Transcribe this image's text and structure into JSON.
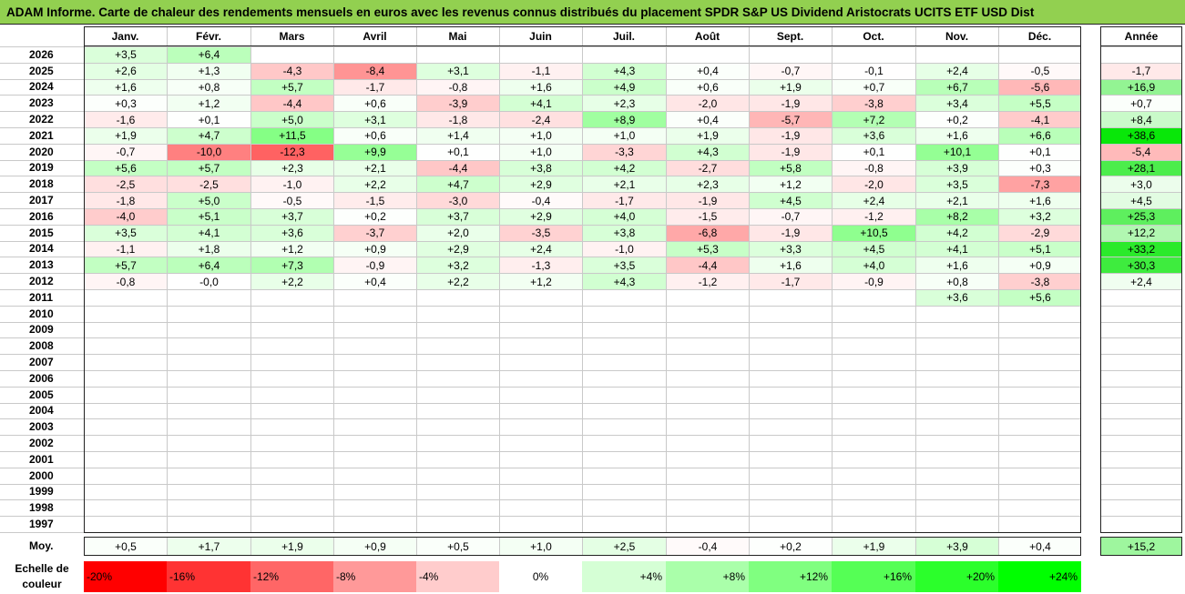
{
  "title": "ADAM Informe. Carte de chaleur des rendements mensuels en euros avec les revenus connus distribués du placement SPDR S&P US Dividend Aristocrats UCITS ETF USD Dist",
  "months": [
    "Janv.",
    "Févr.",
    "Mars",
    "Avril",
    "Mai",
    "Juin",
    "Juil.",
    "Août",
    "Sept.",
    "Oct.",
    "Nov.",
    "Déc."
  ],
  "annual_header": "Année",
  "average_label": "Moy.",
  "scale_label": "Echelle de couleur",
  "chart_data": {
    "type": "heatmap",
    "title": "ADAM Informe. Carte de chaleur des rendements mensuels en euros avec les revenus connus distribués du placement SPDR S&P US Dividend Aristocrats UCITS ETF USD Dist",
    "x_categories": [
      "Janv.",
      "Févr.",
      "Mars",
      "Avril",
      "Mai",
      "Juin",
      "Juil.",
      "Août",
      "Sept.",
      "Oct.",
      "Nov.",
      "Déc."
    ],
    "rows": [
      {
        "year": "2026",
        "months": [
          "+3,5",
          "+6,4",
          "",
          "",
          "",
          "",
          "",
          "",
          "",
          "",
          "",
          ""
        ],
        "annual": ""
      },
      {
        "year": "2025",
        "months": [
          "+2,6",
          "+1,3",
          "-4,3",
          "-8,4",
          "+3,1",
          "-1,1",
          "+4,3",
          "+0,4",
          "-0,7",
          "-0,1",
          "+2,4",
          "-0,5"
        ],
        "annual": "-1,7"
      },
      {
        "year": "2024",
        "months": [
          "+1,6",
          "+0,8",
          "+5,7",
          "-1,7",
          "-0,8",
          "+1,6",
          "+4,9",
          "+0,6",
          "+1,9",
          "+0,7",
          "+6,7",
          "-5,6"
        ],
        "annual": "+16,9"
      },
      {
        "year": "2023",
        "months": [
          "+0,3",
          "+1,2",
          "-4,4",
          "+0,6",
          "-3,9",
          "+4,1",
          "+2,3",
          "-2,0",
          "-1,9",
          "-3,8",
          "+3,4",
          "+5,5"
        ],
        "annual": "+0,7"
      },
      {
        "year": "2022",
        "months": [
          "-1,6",
          "+0,1",
          "+5,0",
          "+3,1",
          "-1,8",
          "-2,4",
          "+8,9",
          "+0,4",
          "-5,7",
          "+7,2",
          "+0,2",
          "-4,1"
        ],
        "annual": "+8,4"
      },
      {
        "year": "2021",
        "months": [
          "+1,9",
          "+4,7",
          "+11,5",
          "+0,6",
          "+1,4",
          "+1,0",
          "+1,0",
          "+1,9",
          "-1,9",
          "+3,6",
          "+1,6",
          "+6,6"
        ],
        "annual": "+38,6"
      },
      {
        "year": "2020",
        "months": [
          "-0,7",
          "-10,0",
          "-12,3",
          "+9,9",
          "+0,1",
          "+1,0",
          "-3,3",
          "+4,3",
          "-1,9",
          "+0,1",
          "+10,1",
          "+0,1"
        ],
        "annual": "-5,4"
      },
      {
        "year": "2019",
        "months": [
          "+5,6",
          "+5,7",
          "+2,3",
          "+2,1",
          "-4,4",
          "+3,8",
          "+4,2",
          "-2,7",
          "+5,8",
          "-0,8",
          "+3,9",
          "+0,3"
        ],
        "annual": "+28,1"
      },
      {
        "year": "2018",
        "months": [
          "-2,5",
          "-2,5",
          "-1,0",
          "+2,2",
          "+4,7",
          "+2,9",
          "+2,1",
          "+2,3",
          "+1,2",
          "-2,0",
          "+3,5",
          "-7,3"
        ],
        "annual": "+3,0"
      },
      {
        "year": "2017",
        "months": [
          "-1,8",
          "+5,0",
          "-0,5",
          "-1,5",
          "-3,0",
          "-0,4",
          "-1,7",
          "-1,9",
          "+4,5",
          "+2,4",
          "+2,1",
          "+1,6"
        ],
        "annual": "+4,5"
      },
      {
        "year": "2016",
        "months": [
          "-4,0",
          "+5,1",
          "+3,7",
          "+0,2",
          "+3,7",
          "+2,9",
          "+4,0",
          "-1,5",
          "-0,7",
          "-1,2",
          "+8,2",
          "+3,2"
        ],
        "annual": "+25,3"
      },
      {
        "year": "2015",
        "months": [
          "+3,5",
          "+4,1",
          "+3,6",
          "-3,7",
          "+2,0",
          "-3,5",
          "+3,8",
          "-6,8",
          "-1,9",
          "+10,5",
          "+4,2",
          "-2,9"
        ],
        "annual": "+12,2"
      },
      {
        "year": "2014",
        "months": [
          "-1,1",
          "+1,8",
          "+1,2",
          "+0,9",
          "+2,9",
          "+2,4",
          "-1,0",
          "+5,3",
          "+3,3",
          "+4,5",
          "+4,1",
          "+5,1"
        ],
        "annual": "+33,2"
      },
      {
        "year": "2013",
        "months": [
          "+5,7",
          "+6,4",
          "+7,3",
          "-0,9",
          "+3,2",
          "-1,3",
          "+3,5",
          "-4,4",
          "+1,6",
          "+4,0",
          "+1,6",
          "+0,9"
        ],
        "annual": "+30,3"
      },
      {
        "year": "2012",
        "months": [
          "-0,8",
          "-0,0",
          "+2,2",
          "+0,4",
          "+2,2",
          "+1,2",
          "+4,3",
          "-1,2",
          "-1,7",
          "-0,9",
          "+0,8",
          "-3,8"
        ],
        "annual": "+2,4"
      },
      {
        "year": "2011",
        "months": [
          "",
          "",
          "",
          "",
          "",
          "",
          "",
          "",
          "",
          "",
          "+3,6",
          "+5,6"
        ],
        "annual": ""
      },
      {
        "year": "2010",
        "months": [
          "",
          "",
          "",
          "",
          "",
          "",
          "",
          "",
          "",
          "",
          "",
          ""
        ],
        "annual": ""
      },
      {
        "year": "2009",
        "months": [
          "",
          "",
          "",
          "",
          "",
          "",
          "",
          "",
          "",
          "",
          "",
          ""
        ],
        "annual": ""
      },
      {
        "year": "2008",
        "months": [
          "",
          "",
          "",
          "",
          "",
          "",
          "",
          "",
          "",
          "",
          "",
          ""
        ],
        "annual": ""
      },
      {
        "year": "2007",
        "months": [
          "",
          "",
          "",
          "",
          "",
          "",
          "",
          "",
          "",
          "",
          "",
          ""
        ],
        "annual": ""
      },
      {
        "year": "2006",
        "months": [
          "",
          "",
          "",
          "",
          "",
          "",
          "",
          "",
          "",
          "",
          "",
          ""
        ],
        "annual": ""
      },
      {
        "year": "2005",
        "months": [
          "",
          "",
          "",
          "",
          "",
          "",
          "",
          "",
          "",
          "",
          "",
          ""
        ],
        "annual": ""
      },
      {
        "year": "2004",
        "months": [
          "",
          "",
          "",
          "",
          "",
          "",
          "",
          "",
          "",
          "",
          "",
          ""
        ],
        "annual": ""
      },
      {
        "year": "2003",
        "months": [
          "",
          "",
          "",
          "",
          "",
          "",
          "",
          "",
          "",
          "",
          "",
          ""
        ],
        "annual": ""
      },
      {
        "year": "2002",
        "months": [
          "",
          "",
          "",
          "",
          "",
          "",
          "",
          "",
          "",
          "",
          "",
          ""
        ],
        "annual": ""
      },
      {
        "year": "2001",
        "months": [
          "",
          "",
          "",
          "",
          "",
          "",
          "",
          "",
          "",
          "",
          "",
          ""
        ],
        "annual": ""
      },
      {
        "year": "2000",
        "months": [
          "",
          "",
          "",
          "",
          "",
          "",
          "",
          "",
          "",
          "",
          "",
          ""
        ],
        "annual": ""
      },
      {
        "year": "1999",
        "months": [
          "",
          "",
          "",
          "",
          "",
          "",
          "",
          "",
          "",
          "",
          "",
          ""
        ],
        "annual": ""
      },
      {
        "year": "1998",
        "months": [
          "",
          "",
          "",
          "",
          "",
          "",
          "",
          "",
          "",
          "",
          "",
          ""
        ],
        "annual": ""
      },
      {
        "year": "1997",
        "months": [
          "",
          "",
          "",
          "",
          "",
          "",
          "",
          "",
          "",
          "",
          "",
          ""
        ],
        "annual": ""
      }
    ],
    "averages": [
      "+0,5",
      "+1,7",
      "+1,9",
      "+0,9",
      "+0,5",
      "+1,0",
      "+2,5",
      "-0,4",
      "+0,2",
      "+1,9",
      "+3,9",
      "+0,4"
    ],
    "average_annual": "+15,2",
    "color_scale": [
      "-20%",
      "-16%",
      "-12%",
      "-8%",
      "-4%",
      "0%",
      "+4%",
      "+8%",
      "+12%",
      "+16%",
      "+20%",
      "+24%"
    ],
    "colors": {
      "negative_max": "#ff0000",
      "neutral": "#ffffff",
      "positive_max": "#00ff00",
      "title_bg": "#92d050"
    }
  }
}
